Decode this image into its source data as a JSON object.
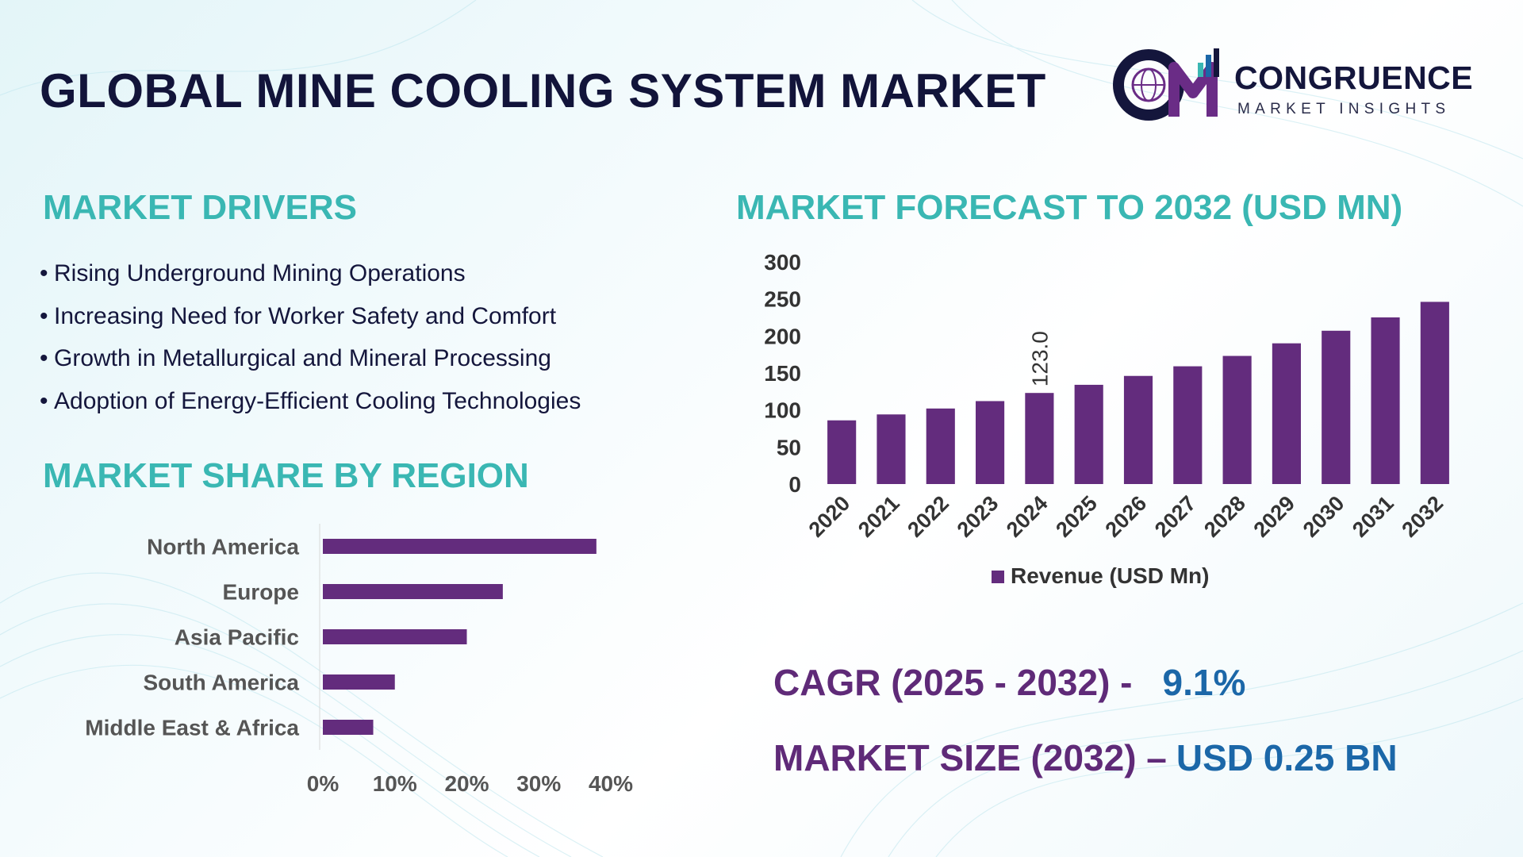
{
  "header": {
    "title": "GLOBAL MINE COOLING SYSTEM MARKET",
    "logo": {
      "name": "CONGRUENCE",
      "tagline": "MARKET INSIGHTS",
      "mark": "CM"
    }
  },
  "drivers": {
    "title": "MARKET DRIVERS",
    "items": [
      "Rising Underground Mining Operations",
      "Increasing Need for Worker Safety and Comfort",
      "Growth in Metallurgical and Mineral Processing",
      "Adoption of Energy-Efficient Cooling Technologies"
    ]
  },
  "forecast_title": "MARKET FORECAST TO 2032 (USD MN)",
  "region_title": "MARKET SHARE BY REGION",
  "metrics": {
    "cagr_label": "CAGR (2025 - 2032) -",
    "cagr_value": "9.1%",
    "size_label": "MARKET SIZE (2032) –",
    "size_value": "USD 0.25 BN"
  },
  "colors": {
    "bar": "#632c7d",
    "heading": "#3ab7b3",
    "title": "#12143a",
    "metric_label": "#5f2a78",
    "metric_value": "#1b67a8"
  },
  "chart_data": [
    {
      "type": "bar",
      "title": "MARKET FORECAST TO 2032 (USD MN)",
      "categories": [
        "2020",
        "2021",
        "2022",
        "2023",
        "2024",
        "2025",
        "2026",
        "2027",
        "2028",
        "2029",
        "2030",
        "2031",
        "2032"
      ],
      "series": [
        {
          "name": "Revenue (USD Mn)",
          "values": [
            86,
            94,
            102,
            112,
            123.0,
            134,
            146,
            159,
            173,
            190,
            207,
            225,
            246
          ]
        }
      ],
      "data_labels": [
        {
          "category": "2024",
          "text": "123.0"
        }
      ],
      "ylim": [
        0,
        300
      ],
      "yticks": [
        "0",
        "50",
        "100",
        "150",
        "200",
        "250",
        "300"
      ],
      "legend": "bottom",
      "grid": false
    },
    {
      "type": "bar",
      "orientation": "horizontal",
      "title": "MARKET SHARE BY REGION",
      "categories": [
        "North America",
        "Europe",
        "Asia Pacific",
        "South America",
        "Middle East & Africa"
      ],
      "values": [
        38,
        25,
        20,
        10,
        7
      ],
      "xlim": [
        0,
        40
      ],
      "xticks": [
        "0%",
        "10%",
        "20%",
        "30%",
        "40%"
      ],
      "grid": false
    }
  ]
}
